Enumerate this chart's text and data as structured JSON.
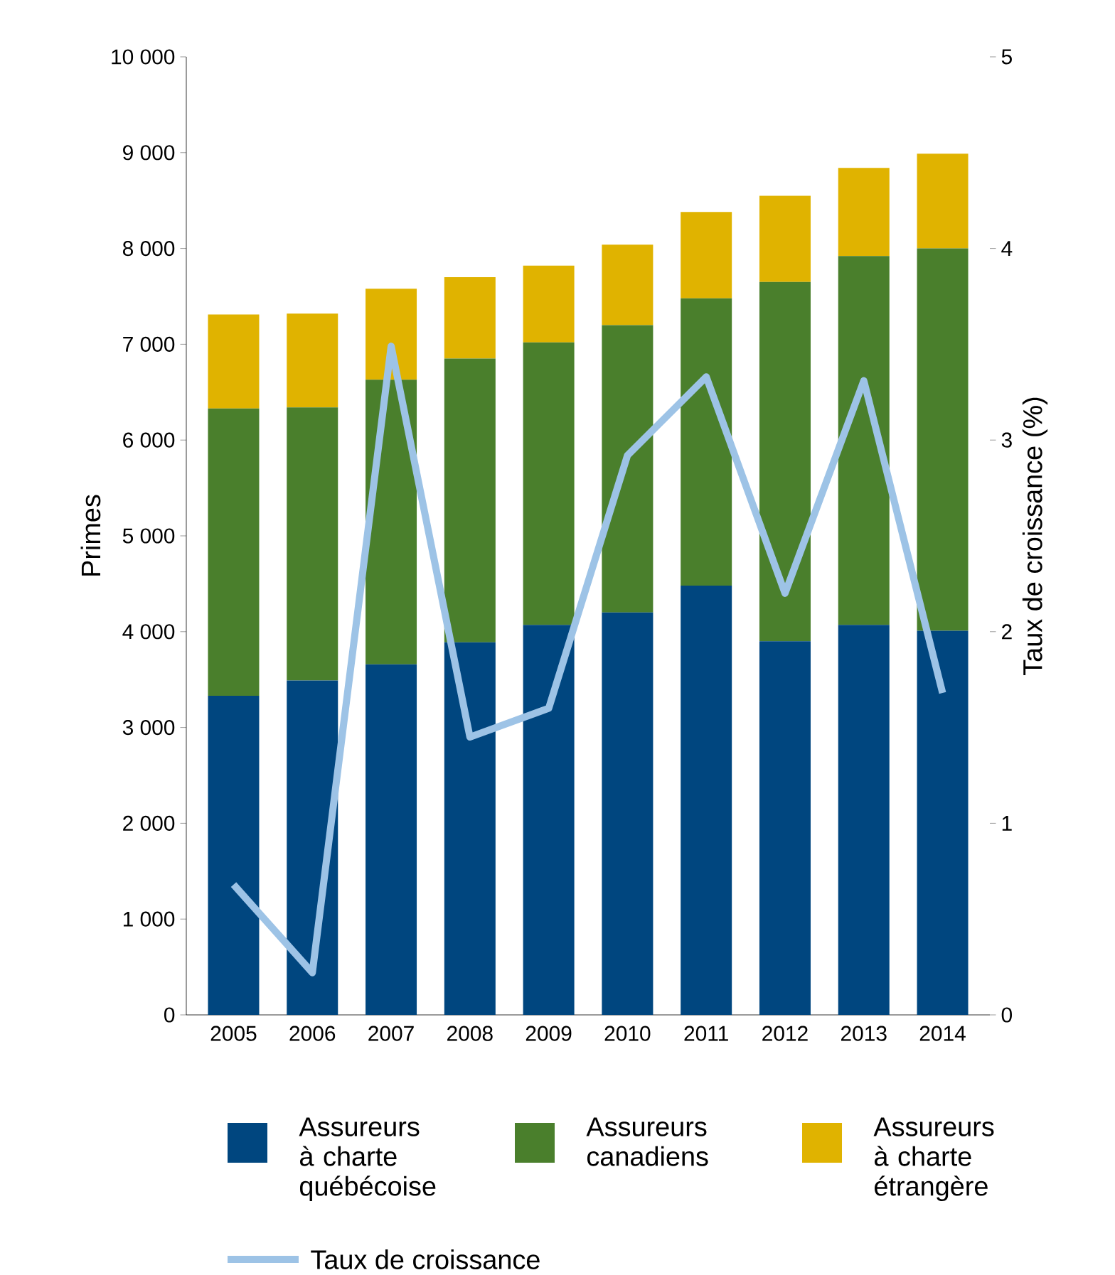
{
  "chart_data": {
    "type": "bar",
    "stacked": true,
    "legend": "bottom",
    "ylabel": "Primes",
    "y2label": "Taux de croissance (%)",
    "categories": [
      "2005",
      "2006",
      "2007",
      "2008",
      "2009",
      "2010",
      "2011",
      "2012",
      "2013",
      "2014"
    ],
    "ylim": [
      0,
      10000
    ],
    "yticks": [
      0,
      {
        "value": 1000,
        "label": "1 000"
      },
      {
        "value": 2000,
        "label": "2 000"
      },
      {
        "value": 3000,
        "label": "3 000"
      },
      {
        "value": 4000,
        "label": "4 000"
      },
      {
        "value": 5000,
        "label": "5 000"
      },
      {
        "value": 6000,
        "label": "6 000"
      },
      {
        "value": 7000,
        "label": "7 000"
      },
      {
        "value": 8000,
        "label": "8 000"
      },
      {
        "value": 9000,
        "label": "9 000"
      },
      {
        "value": 10000,
        "label": "10 000"
      }
    ],
    "y2lim": [
      0,
      5
    ],
    "y2ticks": [
      0,
      1,
      2,
      3,
      4,
      5
    ],
    "series": [
      {
        "name": "Assureurs à charte québécoise",
        "type": "bar",
        "color": "#00467f",
        "values": [
          3330,
          3490,
          3660,
          3890,
          4070,
          4200,
          4480,
          3900,
          4070,
          4010
        ]
      },
      {
        "name": "Assureurs canadiens",
        "type": "bar",
        "color": "#4a7f2c",
        "values": [
          3000,
          2850,
          2970,
          2960,
          2950,
          3000,
          3000,
          3750,
          3850,
          3990
        ]
      },
      {
        "name": "Assureurs à charte étrangère",
        "type": "bar",
        "color": "#e0b300",
        "values": [
          980,
          980,
          950,
          850,
          800,
          840,
          900,
          900,
          920,
          990
        ]
      },
      {
        "name": "Taux de croissance",
        "type": "line",
        "axis": "y2",
        "color": "#9dc3e6",
        "values": [
          0.68,
          0.22,
          3.49,
          1.45,
          1.6,
          2.92,
          3.33,
          2.2,
          3.31,
          1.68
        ]
      }
    ]
  }
}
